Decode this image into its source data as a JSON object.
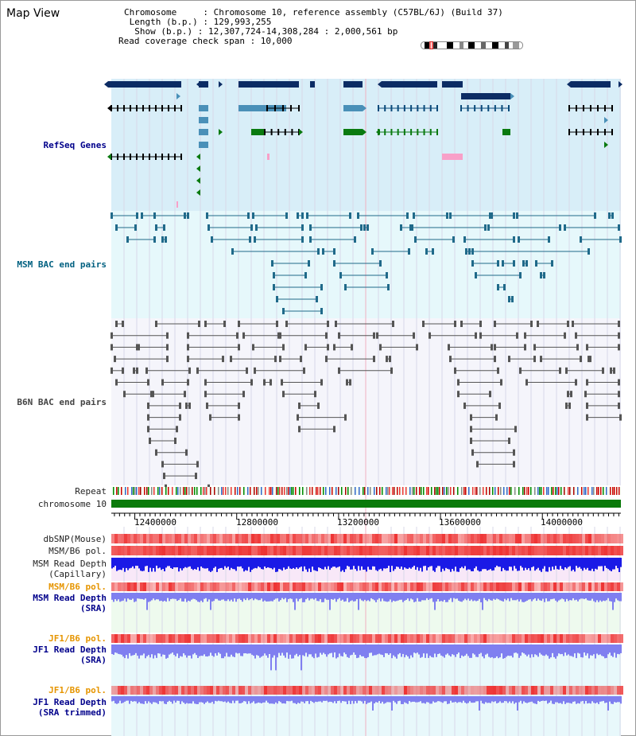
{
  "page": {
    "title": "Map View"
  },
  "info": {
    "line1": "Chromosome     : Chromosome 10, reference assembly (C57BL/6J) (Build 37)",
    "line2": " Length (b.p.) : 129,993,255",
    "line3": "  Show (b.p.) : 12,307,724-14,308,284 : 2,000,561 bp",
    "line4": "Read coverage check span : 10,000"
  },
  "tracks": {
    "refseq": "RefSeq Genes",
    "msm_bac": "MSM BAC end pairs",
    "b6n_bac": "B6N BAC end pairs",
    "repeat": "Repeat",
    "chromosome": "chromosome 10",
    "dbsnp": "dbSNP(Mouse)",
    "msm_b6_pol": "MSM/B6 pol.",
    "msm_depth_cap_1": "MSM Read Depth",
    "msm_depth_cap_2": "(Capillary)",
    "msm_b6_pol2": "MSM/B6 pol.",
    "msm_depth_sra_1": "MSM Read Depth",
    "msm_depth_sra_2": "(SRA)",
    "jf1_b6_pol": "JF1/B6 pol.",
    "jf1_depth_sra_1": "JF1 Read Depth",
    "jf1_depth_sra_2": "(SRA)",
    "jf1_b6_pol2": "JF1/B6 pol.",
    "jf1_depth_trim_1": "JF1 Read Depth",
    "jf1_depth_trim_2": "(SRA trimmed)"
  },
  "axis": {
    "ticks": [
      "12400000",
      "12800000",
      "13200000",
      "13600000",
      "14000000"
    ],
    "tick_values": [
      12400000,
      12800000,
      13200000,
      13600000,
      14000000
    ],
    "range": [
      12307724,
      14308284
    ]
  },
  "colors": {
    "refseq_bg": "#d8eef8",
    "msm_bg": "#e6f8fb",
    "b6n_bg": "#f5f5fb",
    "gene_dark": "#0c2c64",
    "gene_mid": "#4a90b8",
    "gene_green": "#0a7a10",
    "gene_black": "#000000",
    "chromosome": "#0a7a0a",
    "depth_blue": "#1a1ae6",
    "depth_light": "#7f7ff0",
    "pol_red": "#ee3333"
  }
}
